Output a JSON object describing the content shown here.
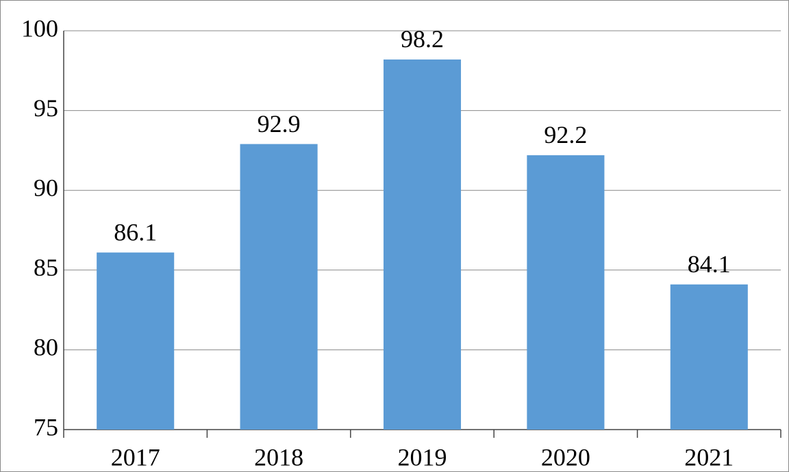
{
  "chart_data": {
    "type": "bar",
    "categories": [
      "2017",
      "2018",
      "2019",
      "2020",
      "2021"
    ],
    "values": [
      86.1,
      92.9,
      98.2,
      92.2,
      84.1
    ],
    "color": "#5b9bd5",
    "ylim": [
      75,
      100
    ],
    "yticks": [
      75,
      80,
      85,
      90,
      95,
      100
    ],
    "grid": true,
    "data_labels": true
  }
}
